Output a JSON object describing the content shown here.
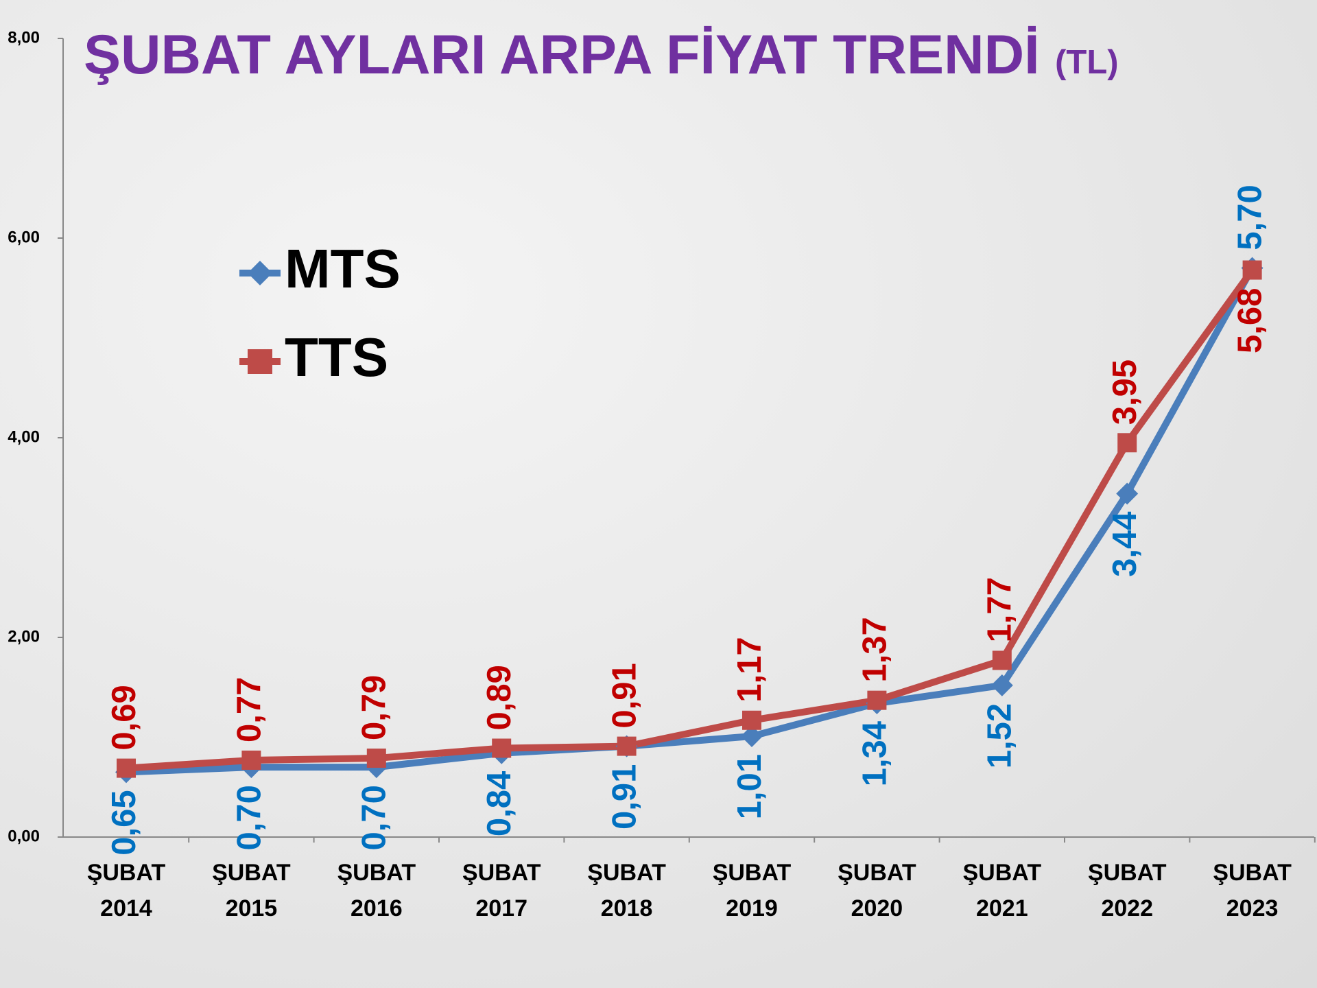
{
  "chart_data": {
    "type": "line",
    "title": "ŞUBAT AYLARI ARPA FİYAT TRENDİ",
    "title_unit": "(TL)",
    "categories": [
      "ŞUBAT 2014",
      "ŞUBAT 2015",
      "ŞUBAT 2016",
      "ŞUBAT 2017",
      "ŞUBAT 2018",
      "ŞUBAT 2019",
      "ŞUBAT 2020",
      "ŞUBAT 2021",
      "ŞUBAT 2022",
      "ŞUBAT 2023"
    ],
    "series": [
      {
        "name": "MTS",
        "color": "#4a7ebb",
        "marker": "diamond",
        "label_color": "#0070c0",
        "values": [
          0.65,
          0.7,
          0.7,
          0.84,
          0.91,
          1.01,
          1.34,
          1.52,
          3.44,
          5.7
        ],
        "value_labels": [
          "0,65",
          "0,70",
          "0,70",
          "0,84",
          "0,91",
          "1,01",
          "1,34",
          "1,52",
          "3,44",
          "5,70"
        ]
      },
      {
        "name": "TTS",
        "color": "#be4b48",
        "marker": "square",
        "label_color": "#c00000",
        "values": [
          0.69,
          0.77,
          0.79,
          0.89,
          0.91,
          1.17,
          1.37,
          1.77,
          3.95,
          5.68
        ],
        "value_labels": [
          "0,69",
          "0,77",
          "0,79",
          "0,89",
          "0,91",
          "1,17",
          "1,37",
          "1,77",
          "3,95",
          "5,68"
        ]
      }
    ],
    "ylim": [
      0,
      8
    ],
    "yticks": [
      {
        "value": 0,
        "label": "0,00"
      },
      {
        "value": 2,
        "label": "2,00"
      },
      {
        "value": 4,
        "label": "4,00"
      },
      {
        "value": 6,
        "label": "6,00"
      },
      {
        "value": 8,
        "label": "8,00"
      }
    ],
    "grid": false,
    "legend": "upper left"
  }
}
